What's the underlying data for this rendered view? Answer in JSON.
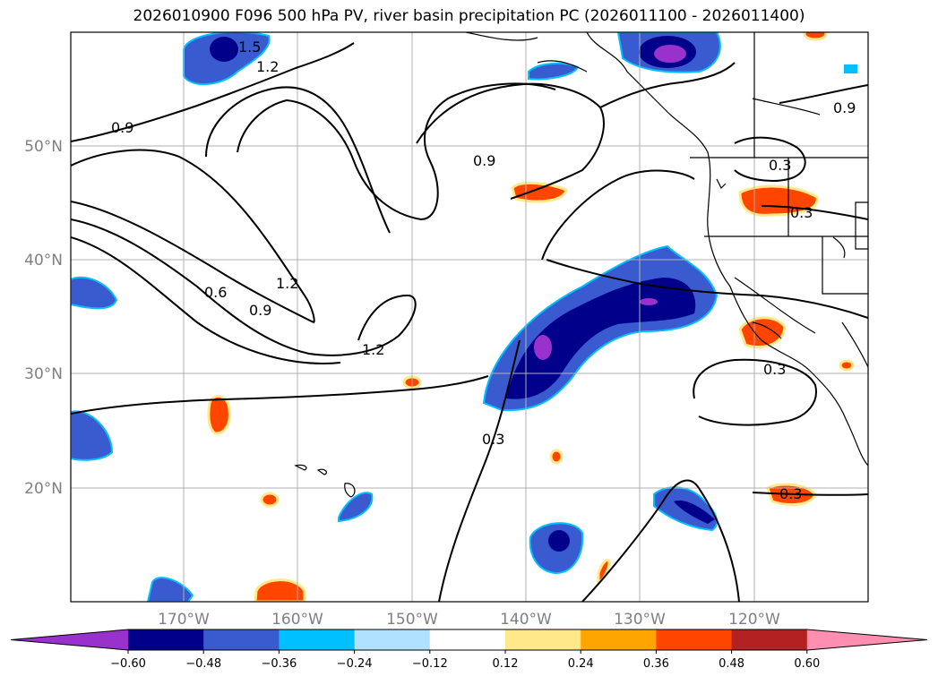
{
  "title": "2026010900 F096 500 hPa PV, river basin precipitation PC (2026011100 - 2026011400)",
  "map": {
    "lon_labels": [
      "170°W",
      "160°W",
      "150°W",
      "140°W",
      "130°W",
      "120°W"
    ],
    "lat_labels": [
      "50°N",
      "40°N",
      "30°N",
      "20°N"
    ],
    "contour_labels": [
      "1.5",
      "1.2",
      "0.9",
      "0.9",
      "0.6",
      "0.9",
      "1.2",
      "1.2",
      "0.3",
      "0.9",
      "0.3",
      "0.3",
      "0.3",
      "0.3"
    ]
  },
  "colorbar": {
    "colors": [
      "#9932cc",
      "#00008b",
      "#3a5bcf",
      "#00bfff",
      "#b0e2ff",
      "#ffffff",
      "#ffe88a",
      "#ffa500",
      "#ff4500",
      "#b22222",
      "#ff8fb1"
    ],
    "tick_labels": [
      "−0.60",
      "−0.48",
      "−0.36",
      "−0.24",
      "−0.12",
      "0.12",
      "0.24",
      "0.36",
      "0.48",
      "0.60"
    ]
  }
}
